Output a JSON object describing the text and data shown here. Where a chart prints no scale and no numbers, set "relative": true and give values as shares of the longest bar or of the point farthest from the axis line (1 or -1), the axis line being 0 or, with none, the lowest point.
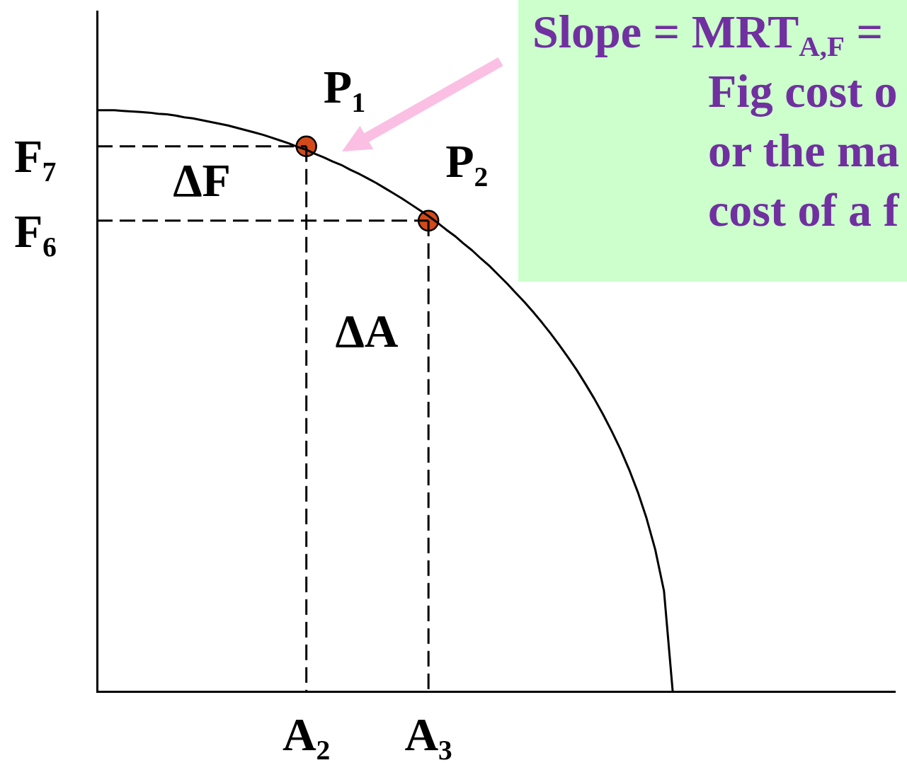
{
  "chart_data": {
    "type": "line",
    "relative": true,
    "categories": [
      null,
      null,
      null,
      null,
      null,
      null,
      null,
      null,
      null,
      null,
      null,
      null,
      null,
      null,
      null,
      null,
      null,
      null,
      null,
      null,
      null,
      null,
      null,
      null,
      "A₂",
      null,
      null,
      null,
      null,
      null,
      null,
      null,
      null,
      null,
      null,
      null,
      null,
      null,
      "A₃",
      null,
      null,
      null,
      null,
      null,
      null,
      null,
      null,
      null,
      null,
      null,
      null,
      null,
      null,
      null,
      null,
      null,
      null,
      null,
      null,
      null,
      null,
      null,
      null,
      null,
      null,
      null,
      null
    ],
    "series": [
      {
        "color": "#000000",
        "values": [
          1,
          1,
          1,
          0.999,
          0.998,
          0.997,
          0.996,
          0.994,
          0.993,
          0.991,
          0.988,
          0.986,
          0.983,
          0.98,
          0.977,
          0.974,
          0.97,
          0.966,
          0.962,
          0.958,
          0.953,
          0.948,
          0.943,
          0.937,
          0.932,
          0.925,
          0.919,
          0.912,
          0.906,
          0.898,
          0.891,
          0.883,
          0.875,
          0.866,
          0.857,
          0.848,
          0.838,
          0.828,
          0.818,
          0.807,
          0.795,
          0.784,
          0.771,
          0.759,
          0.745,
          0.732,
          0.717,
          0.702,
          0.686,
          0.67,
          0.653,
          0.635,
          0.616,
          0.596,
          0.575,
          0.553,
          0.529,
          0.504,
          0.477,
          0.448,
          0.417,
          0.382,
          0.343,
          0.298,
          0.244,
          0.173,
          0
        ]
      },
      {
        "color": "#000000",
        "line_style": "dashed",
        "values": [
          0.938,
          0.938,
          0.938,
          0.938,
          0.938,
          0.938,
          0.938,
          0.938,
          0.938,
          0.938,
          0.938,
          0.938,
          0.938,
          0.938,
          0.938,
          0.938,
          0.938,
          0.938,
          0.938,
          0.938,
          0.938,
          0.938,
          0.938,
          0.938,
          0.938,
          null,
          null,
          null,
          null,
          null,
          null,
          null,
          null,
          null,
          null,
          null,
          null,
          null,
          null,
          null,
          null,
          null,
          null,
          null,
          null,
          null,
          null,
          null,
          null,
          null,
          null,
          null,
          null,
          null,
          null,
          null,
          null,
          null,
          null,
          null,
          null,
          null,
          null,
          null,
          null,
          null,
          null
        ]
      },
      {
        "color": "#000000",
        "line_style": "dashed",
        "x": [
          "A₂",
          "A₂"
        ],
        "values": [
          0.938,
          0
        ]
      },
      {
        "color": "#000000",
        "line_style": "dashed",
        "values": [
          0.81,
          0.81,
          0.81,
          0.81,
          0.81,
          0.81,
          0.81,
          0.81,
          0.81,
          0.81,
          0.81,
          0.81,
          0.81,
          0.81,
          0.81,
          0.81,
          0.81,
          0.81,
          0.81,
          0.81,
          0.81,
          0.81,
          0.81,
          0.81,
          0.81,
          0.81,
          0.81,
          0.81,
          0.81,
          0.81,
          0.81,
          0.81,
          0.81,
          0.81,
          0.81,
          0.81,
          0.81,
          0.81,
          0.81,
          null,
          null,
          null,
          null,
          null,
          null,
          null,
          null,
          null,
          null,
          null,
          null,
          null,
          null,
          null,
          null,
          null,
          null,
          null,
          null,
          null,
          null,
          null,
          null,
          null,
          null,
          null,
          null
        ]
      },
      {
        "color": "#000000",
        "line_style": "dashed",
        "x": [
          "A₃",
          "A₃"
        ],
        "values": [
          0.81,
          0
        ]
      },
      {
        "type": "scatter",
        "color": "#d24a1a",
        "marker": "circle",
        "x": [
          "A₂",
          "A₃"
        ],
        "values": [
          0.938,
          0.81
        ]
      }
    ],
    "annotations": [
      {
        "text": "P₁",
        "x": "A₂",
        "y": 0.938
      },
      {
        "text": "P₂",
        "x": "A₃",
        "y": 0.81
      },
      "F₇",
      "F₆",
      "ΔF",
      "ΔA",
      "Slope = MRT$_{A,F}$ =\nFig cost o\nor the ma\ncost of a f"
    ]
  }
}
